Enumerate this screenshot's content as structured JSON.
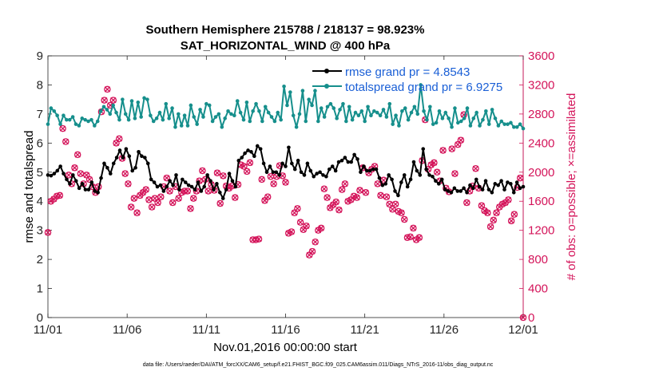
{
  "chart_data": {
    "type": "line",
    "title": "Southern Hemisphere 215788 / 218137 = 98.923%",
    "subtitle": "SAT_HORIZONTAL_WIND @ 400 hPa",
    "xlabel": "Nov.01,2016 00:00:00 start",
    "ylabel_left": "rmse and totalspread",
    "ylabel_right": "# of obs: o=possible; ×=assimilated",
    "footer": "data file: /Users/raeder/DAI/ATM_forcXX/CAM6_setup/f.e21.FHIST_BGC.f09_025.CAM6assim.011/Diags_NTrS_2016-11/obs_diag_output.nc",
    "x_ticks": [
      "11/01",
      "11/06",
      "11/11",
      "11/16",
      "11/21",
      "11/26",
      "12/01"
    ],
    "xlim": [
      0,
      30
    ],
    "ylim_left": [
      0,
      9
    ],
    "ylim_right": [
      0,
      3600
    ],
    "y_ticks_left": [
      "0",
      "1",
      "2",
      "3",
      "4",
      "5",
      "6",
      "7",
      "8",
      "9"
    ],
    "y_ticks_right": [
      "0",
      "400",
      "800",
      "1200",
      "1600",
      "2000",
      "2400",
      "2800",
      "3200",
      "3600"
    ],
    "legend_position": "top-right",
    "colors": {
      "rmse": "#000000",
      "spread": "#168f8c",
      "obs": "#d4145a",
      "right_axis": "#d4145a",
      "legend_text": "#1a5fd6"
    },
    "series": [
      {
        "name": "rmse grand pr = 4.8543",
        "axis": "left",
        "values": [
          4.9,
          4.88,
          4.95,
          5.05,
          5.2,
          4.95,
          4.75,
          4.6,
          4.9,
          4.7,
          4.45,
          4.6,
          4.4,
          4.4,
          4.65,
          4.35,
          4.3,
          4.8,
          5.3,
          5.15,
          4.95,
          5.3,
          5.5,
          5.75,
          5.5,
          5.8,
          5.55,
          5.05,
          5.15,
          5.7,
          5.55,
          5.5,
          5.3,
          4.75,
          4.65,
          4.5,
          4.55,
          4.35,
          4.5,
          4.7,
          4.55,
          4.9,
          4.4,
          4.75,
          4.65,
          4.55,
          4.5,
          4.4,
          4.65,
          4.35,
          4.5,
          4.9,
          4.7,
          4.4,
          4.6,
          4.3,
          4.1,
          4.4,
          4.95,
          4.7,
          4.5,
          5.4,
          5.5,
          5.65,
          5.75,
          5.7,
          5.55,
          5.9,
          5.8,
          5.3,
          5.0,
          5.2,
          5.0,
          5.0,
          4.9,
          5.3,
          5.2,
          5.85,
          5.3,
          5.1,
          5.4,
          5.0,
          4.9,
          5.3,
          5.05,
          4.85,
          4.95,
          5.0,
          4.9,
          4.85,
          5.1,
          5.2,
          5.05,
          5.35,
          5.4,
          5.5,
          5.35,
          5.35,
          5.6,
          5.45,
          5.0,
          5.2,
          5.05,
          5.05,
          5.1,
          5.1,
          4.8,
          4.55,
          4.6,
          4.9,
          4.75,
          4.35,
          4.2,
          4.65,
          4.9,
          4.5,
          4.75,
          5.35,
          5.05,
          4.9,
          5.8,
          5.1,
          4.9,
          4.85,
          4.7,
          4.6,
          4.75,
          4.4,
          4.35,
          4.3,
          4.45,
          4.35,
          4.35,
          4.45,
          4.3,
          4.55,
          4.45,
          4.75,
          4.5,
          4.4,
          4.7,
          4.4,
          4.3,
          4.6,
          4.55,
          4.7,
          4.4,
          4.65,
          4.6,
          4.3,
          4.65,
          4.45,
          4.5
        ]
      },
      {
        "name": "totalspread grand pr = 6.9275",
        "axis": "left",
        "values": [
          6.65,
          7.2,
          7.1,
          6.95,
          6.65,
          6.95,
          6.8,
          6.8,
          6.9,
          6.65,
          6.6,
          6.85,
          6.8,
          6.75,
          6.8,
          6.6,
          6.75,
          7.1,
          7.25,
          7.15,
          7.0,
          7.3,
          7.05,
          6.8,
          7.5,
          7.0,
          6.8,
          7.45,
          6.85,
          7.4,
          6.9,
          7.55,
          7.5,
          6.95,
          6.75,
          6.85,
          7.05,
          6.8,
          7.35,
          6.85,
          7.2,
          6.55,
          7.0,
          6.6,
          6.95,
          6.6,
          7.3,
          6.9,
          6.65,
          7.15,
          6.9,
          7.35,
          7.3,
          6.75,
          6.9,
          7.0,
          6.55,
          6.85,
          7.1,
          7.0,
          6.95,
          7.45,
          7.05,
          6.8,
          7.4,
          6.75,
          7.1,
          7.35,
          7.1,
          6.75,
          7.25,
          7.05,
          6.9,
          6.75,
          7.05,
          6.8,
          7.95,
          7.3,
          7.75,
          6.95,
          6.55,
          7.0,
          7.8,
          6.75,
          7.5,
          7.3,
          7.8,
          6.75,
          7.2,
          6.9,
          7.25,
          7.35,
          7.2,
          6.85,
          7.15,
          7.35,
          6.75,
          7.25,
          6.8,
          7.05,
          6.95,
          7.1,
          6.75,
          7.25,
          6.95,
          7.1,
          7.05,
          6.95,
          7.15,
          6.9,
          7.35,
          6.65,
          6.95,
          6.6,
          7.1,
          7.2,
          6.8,
          7.05,
          7.25,
          7.0,
          8.0,
          7.1,
          6.8,
          7.25,
          6.65,
          6.7,
          7.1,
          6.85,
          7.05,
          6.85,
          6.55,
          7.2,
          6.7,
          6.75,
          6.85,
          7.2,
          6.6,
          6.85,
          7.05,
          6.6,
          6.8,
          7.1,
          6.65,
          7.15,
          6.85,
          6.6,
          6.75,
          6.65,
          6.65,
          6.7,
          6.55,
          6.55,
          6.65,
          6.5
        ]
      }
    ],
    "obs_possible": [
      1170,
      1600,
      1630,
      1670,
      1680,
      2600,
      2420,
      1960,
      1840,
      2060,
      2240,
      1980,
      1840,
      1960,
      1900,
      1800,
      1720,
      1800,
      2830,
      2990,
      3140,
      2920,
      2990,
      2400,
      2460,
      2190,
      1980,
      1840,
      1520,
      1640,
      1440,
      1680,
      1720,
      1760,
      1620,
      1520,
      1640,
      1580,
      1660,
      1800,
      1920,
      1740,
      1580,
      1800,
      1640,
      1720,
      1740,
      1740,
      1500,
      1640,
      1740,
      1880,
      2020,
      1900,
      1740,
      1830,
      1750,
      1990,
      1570,
      1950,
      1810,
      1780,
      1810,
      1650,
      1830,
      2100,
      2080,
      2010,
      2130,
      1070,
      1070,
      1080,
      1900,
      1610,
      1660,
      1940,
      1840,
      1940,
      2090,
      1950,
      1860,
      1160,
      1180,
      1440,
      1500,
      1310,
      1210,
      1260,
      860,
      910,
      1040,
      1200,
      1230,
      1770,
      1650,
      1510,
      1550,
      1590,
      1480,
      1760,
      1840,
      1600,
      1620,
      1670,
      1650,
      1750,
      2060,
      1720,
      1990,
      2040,
      2080,
      1840,
      1680,
      1890,
      1660,
      1560,
      1490,
      1560,
      1460,
      1440,
      1350,
      1100,
      1110,
      1230,
      1070,
      1100,
      2160,
      2720,
      2040,
      2100,
      2130,
      2000,
      1880,
      2300,
      1780,
      1730,
      2320,
      1980,
      2380,
      2440,
      2790,
      1580,
      1740,
      1810,
      2050,
      1780,
      1540,
      1470,
      1440,
      1250,
      1340,
      1440,
      1520,
      1560,
      1580,
      1620,
      1330,
      1420,
      1790,
      1920,
      0
    ]
  }
}
